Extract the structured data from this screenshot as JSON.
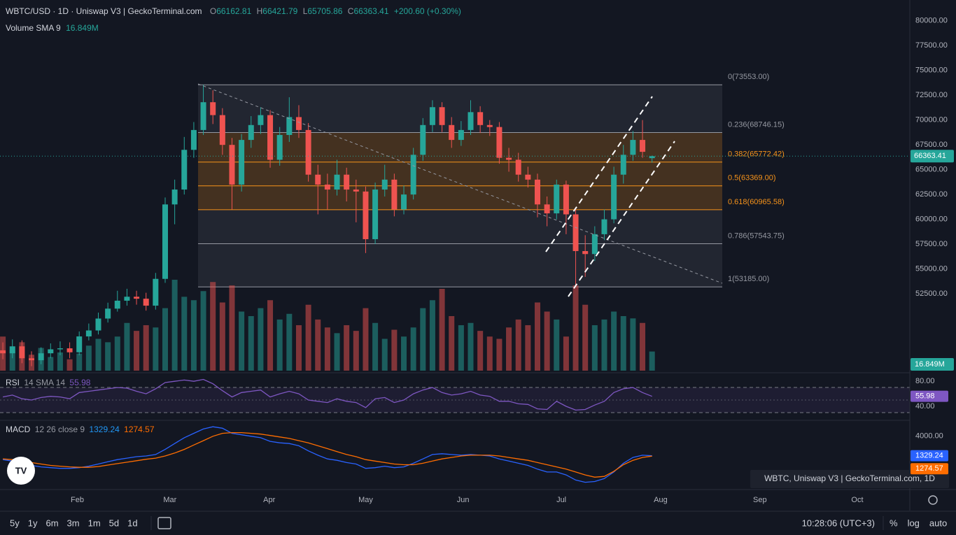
{
  "chart_data": [
    {
      "type": "candlestick",
      "title": "WBTC/USD · 1D · Uniswap V3 | GeckoTerminal.com",
      "ohlc_labels": [
        "O",
        "H",
        "L",
        "C"
      ],
      "change": "+200.60 (+0.30%)",
      "volume_title": "Volume SMA 9",
      "volume_label": "16.849M",
      "watermark": "WBTC, Uniswap V3 | GeckoTerminal.com, 1D",
      "up_color": "#26a69a",
      "down_color": "#ef5350",
      "ylim": [
        44750,
        82100
      ],
      "yticks": [
        {
          "value": 52500,
          "label": "52500.00"
        },
        {
          "value": 55000,
          "label": "55000.00"
        },
        {
          "value": 57500,
          "label": "57500.00"
        },
        {
          "value": 60000,
          "label": "60000.00"
        },
        {
          "value": 62500,
          "label": "62500.00"
        },
        {
          "value": 65000,
          "label": "65000.00"
        },
        {
          "value": 67500,
          "label": "67500.00"
        },
        {
          "value": 70000,
          "label": "70000.00"
        },
        {
          "value": 72500,
          "label": "72500.00"
        },
        {
          "value": 75000,
          "label": "75000.00"
        },
        {
          "value": 77500,
          "label": "77500.00"
        },
        {
          "value": 80000,
          "label": "80000.00"
        }
      ],
      "xlim": [
        -0.3,
        95
      ],
      "xticks": [
        {
          "value": 7.8,
          "label": "Feb"
        },
        {
          "value": 17.5,
          "label": "Mar"
        },
        {
          "value": 27.9,
          "label": "Apr"
        },
        {
          "value": 38,
          "label": "May"
        },
        {
          "value": 48.2,
          "label": "Jun"
        },
        {
          "value": 58.5,
          "label": "Jul"
        },
        {
          "value": 68.9,
          "label": "Aug"
        },
        {
          "value": 79.3,
          "label": "Sep"
        },
        {
          "value": 89.5,
          "label": "Oct"
        }
      ],
      "open": [
        46800,
        46500,
        47200,
        46000,
        45800,
        46500,
        46900,
        47000,
        46600,
        48200,
        48800,
        50000,
        51000,
        51800,
        52200,
        52000,
        51300,
        54000,
        61500,
        63000,
        67000,
        69000,
        71800,
        70500,
        67500,
        63500,
        68000,
        69500,
        70500,
        66000,
        68500,
        70300,
        69000,
        64500,
        63500,
        63000,
        64500,
        63000,
        62800,
        58000,
        63000,
        64000,
        61000,
        62500,
        66500,
        69500,
        71300,
        69500,
        68000,
        69000,
        70800,
        69500,
        69300,
        66200,
        66000,
        64500,
        64000,
        61500,
        60600,
        63500,
        60500,
        56800,
        56500,
        58500,
        60000,
        64500,
        66500,
        68000,
        66162.81
      ],
      "high": [
        47600,
        47900,
        47800,
        46700,
        47100,
        47500,
        47700,
        47600,
        48700,
        49500,
        50600,
        51600,
        52800,
        53000,
        52800,
        52600,
        54600,
        62200,
        64000,
        68300,
        69800,
        73550,
        73000,
        71200,
        68200,
        68600,
        70400,
        71300,
        71000,
        69300,
        72300,
        71500,
        69700,
        65500,
        64600,
        66000,
        65200,
        64000,
        63300,
        63700,
        65500,
        64600,
        63400,
        67200,
        70200,
        72000,
        71800,
        70300,
        69900,
        72000,
        71400,
        70000,
        69800,
        67200,
        66700,
        65300,
        64600,
        62300,
        64000,
        63900,
        61000,
        58400,
        59300,
        61000,
        65300,
        67500,
        68900,
        70000,
        66421.79
      ],
      "low": [
        45900,
        46000,
        45500,
        45200,
        45400,
        46000,
        46300,
        46000,
        46300,
        47800,
        48400,
        49600,
        50700,
        51300,
        51400,
        50800,
        50900,
        53600,
        59500,
        62500,
        66200,
        68500,
        69600,
        66500,
        61000,
        62800,
        67200,
        68600,
        65200,
        65400,
        67800,
        68200,
        63800,
        60500,
        61000,
        62400,
        61800,
        59700,
        56600,
        57500,
        62300,
        60300,
        60500,
        62000,
        65900,
        68800,
        68800,
        67200,
        67400,
        68500,
        68700,
        68400,
        65600,
        64800,
        63800,
        63200,
        60200,
        59300,
        60000,
        58500,
        53200,
        54200,
        55800,
        57900,
        59600,
        63600,
        65900,
        66200,
        65705.86
      ],
      "close": [
        46500,
        47200,
        46000,
        45800,
        46500,
        46900,
        47000,
        46600,
        48200,
        48800,
        50000,
        51000,
        51800,
        52200,
        52000,
        51300,
        54000,
        61500,
        63000,
        67000,
        69000,
        71800,
        70500,
        67500,
        63500,
        68000,
        69500,
        70500,
        66000,
        68500,
        70300,
        69000,
        64500,
        63500,
        63000,
        64500,
        63000,
        62800,
        58000,
        63000,
        64000,
        61000,
        62500,
        66500,
        69500,
        71300,
        69500,
        68000,
        69000,
        70800,
        69500,
        69300,
        66200,
        66000,
        64500,
        64000,
        61500,
        60600,
        63500,
        60500,
        56800,
        56500,
        58500,
        60000,
        64500,
        66500,
        68000,
        66800,
        66363.41
      ],
      "volume": [
        30,
        18,
        25,
        14,
        20,
        12,
        16,
        10,
        15,
        22,
        28,
        25,
        30,
        42,
        35,
        40,
        38,
        55,
        80,
        65,
        62,
        70,
        78,
        60,
        75,
        52,
        48,
        55,
        62,
        45,
        50,
        40,
        58,
        45,
        38,
        33,
        40,
        35,
        55,
        42,
        28,
        36,
        30,
        38,
        55,
        62,
        72,
        48,
        40,
        42,
        35,
        30,
        28,
        38,
        45,
        40,
        60,
        52,
        45,
        30,
        75,
        58,
        40,
        45,
        52,
        48,
        46,
        42,
        16.849
      ],
      "fib_levels": [
        {
          "value": 73553,
          "label": "0(73553.00)",
          "color": "#9598a1"
        },
        {
          "value": 68746.15,
          "label": "0.236(68746.15)",
          "color": "#9598a1"
        },
        {
          "value": 65772.42,
          "label": "0.382(65772.42)",
          "color": "#f7931a"
        },
        {
          "value": 63369,
          "label": "0.5(63369.00)",
          "color": "#f7931a"
        },
        {
          "value": 60965.58,
          "label": "0.618(60965.58)",
          "color": "#f7931a"
        },
        {
          "value": 57543.75,
          "label": "0.786(57543.75)",
          "color": "#9598a1"
        },
        {
          "value": 53185,
          "label": "1(53185.00)",
          "color": "#9598a1"
        }
      ]
    },
    {
      "type": "line",
      "title": "RSI",
      "params": "14 SMA 14",
      "color": "#7e57c2",
      "ylim": [
        21,
        88
      ],
      "yticks": [
        {
          "value": 80,
          "label": "80.00"
        },
        {
          "value": 40,
          "label": "40.00"
        }
      ],
      "values": [
        55,
        58,
        52,
        50,
        54,
        56,
        55,
        52,
        62,
        64,
        66,
        68,
        70,
        69,
        64,
        60,
        68,
        78,
        80,
        82,
        80,
        83,
        76,
        65,
        55,
        62,
        64,
        66,
        55,
        60,
        64,
        60,
        50,
        48,
        46,
        52,
        48,
        46,
        38,
        52,
        54,
        46,
        50,
        60,
        66,
        70,
        62,
        58,
        60,
        64,
        58,
        56,
        48,
        48,
        44,
        43,
        36,
        35,
        48,
        40,
        34,
        35,
        42,
        48,
        62,
        68,
        70,
        62,
        55.98
      ]
    },
    {
      "type": "line",
      "title": "MACD",
      "params": "12 26 close 9",
      "ylim": [
        -3300,
        5800
      ],
      "yticks": [
        {
          "value": 4000,
          "label": "4000.00"
        }
      ],
      "series": [
        {
          "color": "#2962ff",
          "values": [
            800,
            600,
            300,
            0,
            -200,
            -300,
            -400,
            -400,
            -300,
            -100,
            200,
            500,
            800,
            1000,
            1200,
            1300,
            1500,
            2200,
            3000,
            3800,
            4400,
            5000,
            5300,
            5100,
            4400,
            4200,
            4000,
            3800,
            3300,
            3100,
            3000,
            2700,
            2000,
            1400,
            900,
            700,
            400,
            200,
            -400,
            -300,
            -100,
            -300,
            -200,
            300,
            900,
            1500,
            1600,
            1500,
            1400,
            1500,
            1400,
            1300,
            900,
            600,
            300,
            0,
            -500,
            -900,
            -900,
            -1300,
            -2000,
            -2300,
            -2200,
            -1800,
            -900,
            300,
            1100,
            1400,
            1329.24
          ]
        },
        {
          "color": "#ff6d00",
          "values": [
            900,
            800,
            600,
            400,
            200,
            0,
            -100,
            -200,
            -250,
            -250,
            -150,
            50,
            250,
            450,
            650,
            850,
            1000,
            1300,
            1700,
            2200,
            2800,
            3400,
            4000,
            4400,
            4500,
            4500,
            4400,
            4300,
            4100,
            3900,
            3700,
            3400,
            3100,
            2700,
            2300,
            1900,
            1500,
            1200,
            800,
            600,
            400,
            200,
            100,
            100,
            300,
            600,
            900,
            1100,
            1300,
            1400,
            1400,
            1400,
            1300,
            1100,
            900,
            700,
            400,
            100,
            -200,
            -500,
            -900,
            -1300,
            -1600,
            -1500,
            -800,
            100,
            700,
            1100,
            1274.57
          ]
        }
      ]
    }
  ],
  "toolbar": {
    "ranges": [
      "5y",
      "1y",
      "6m",
      "3m",
      "1m",
      "5d",
      "1d"
    ],
    "time": "10:28:06 (UTC+3)",
    "options": [
      "%",
      "log",
      "auto"
    ]
  }
}
